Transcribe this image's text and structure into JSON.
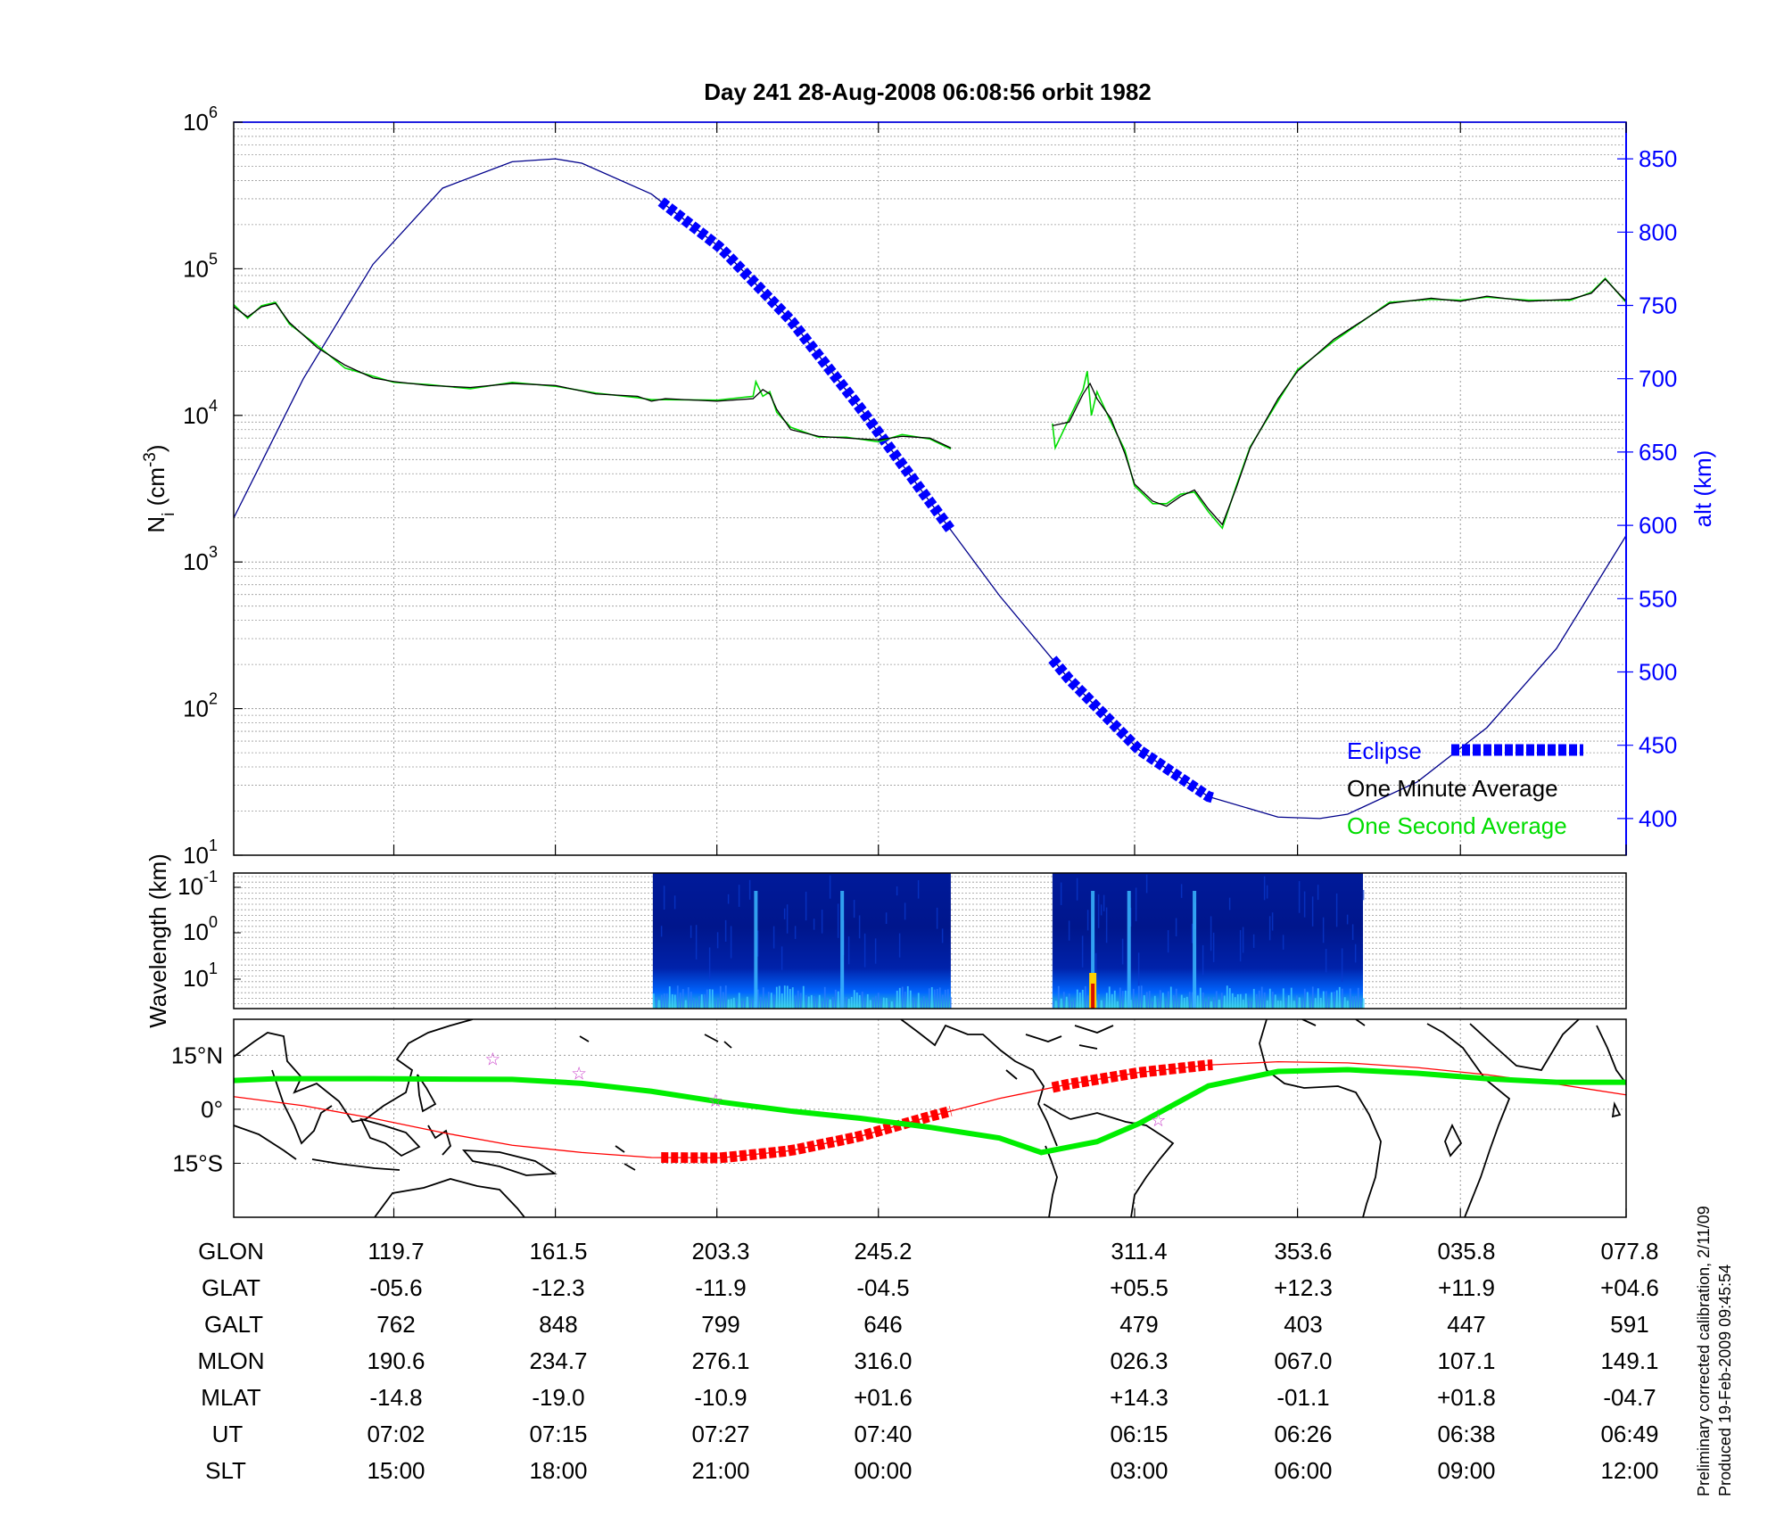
{
  "chart_data": [
    {
      "type": "line",
      "title": "Day 241  28-Aug-2008 06:08:56   orbit 1982",
      "ylabel": "N_i (cm^-3)",
      "yscale": "log",
      "ylim": [
        10,
        1000000
      ],
      "y_ticks": [
        "10^1",
        "10^2",
        "10^3",
        "10^4",
        "10^5",
        "10^6"
      ],
      "y2label": "alt (km)",
      "y2lim": [
        375,
        875
      ],
      "y2_ticks": [
        400,
        450,
        500,
        550,
        600,
        650,
        700,
        750,
        800,
        850
      ],
      "xlim": [
        0,
        1
      ],
      "x_ticks": [
        0.115,
        0.231,
        0.347,
        0.463,
        0.647,
        0.764,
        0.881,
        1.0
      ],
      "grid": true,
      "legend": {
        "position": "bottom-right",
        "entries": [
          "Eclipse",
          "One Minute Average",
          "One Second Average"
        ]
      },
      "series": [
        {
          "name": "One Minute Average",
          "color": "#000000",
          "segments": [
            {
              "x": [
                0.0,
                0.01,
                0.02,
                0.03,
                0.04,
                0.06,
                0.08,
                0.1,
                0.115,
                0.14,
                0.17,
                0.2,
                0.231,
                0.26,
                0.29,
                0.3,
                0.31,
                0.347,
                0.373,
                0.38,
                0.385,
                0.39,
                0.4,
                0.42,
                0.44,
                0.463,
                0.48,
                0.5,
                0.515
              ],
              "y": [
                55000,
                47000,
                55000,
                58000,
                43000,
                29000,
                22000,
                18000,
                17000,
                16000,
                15500,
                16500,
                16000,
                14000,
                13500,
                12500,
                13000,
                12500,
                13000,
                15000,
                14000,
                11000,
                8000,
                7200,
                7000,
                6800,
                7200,
                7000,
                6000
              ]
            },
            {
              "x": [
                0.588,
                0.6,
                0.61,
                0.615,
                0.62,
                0.63,
                0.64,
                0.647,
                0.66,
                0.67,
                0.68,
                0.69,
                0.7,
                0.71,
                0.72,
                0.73,
                0.75,
                0.764,
                0.79,
                0.83,
                0.86,
                0.881,
                0.9,
                0.93,
                0.96,
                0.975,
                0.985,
                1.0
              ],
              "y": [
                8500,
                9000,
                14000,
                16500,
                13000,
                9500,
                5500,
                3400,
                2600,
                2400,
                2800,
                3100,
                2300,
                1800,
                3200,
                6000,
                13000,
                20000,
                33000,
                58000,
                63000,
                60000,
                65000,
                60000,
                62000,
                68000,
                85000,
                60000
              ]
            }
          ]
        },
        {
          "name": "One Second Average",
          "color": "#00dd00",
          "segments": [
            {
              "x": [
                0.0,
                0.01,
                0.02,
                0.03,
                0.04,
                0.06,
                0.08,
                0.1,
                0.115,
                0.14,
                0.17,
                0.2,
                0.231,
                0.26,
                0.29,
                0.3,
                0.31,
                0.347,
                0.373,
                0.375,
                0.38,
                0.385,
                0.39,
                0.4,
                0.42,
                0.44,
                0.463,
                0.48,
                0.5,
                0.515
              ],
              "y": [
                57000,
                46000,
                56000,
                59000,
                42000,
                30000,
                21000,
                18500,
                16800,
                16200,
                15200,
                16800,
                15800,
                14200,
                13200,
                12800,
                12800,
                12700,
                13500,
                17000,
                13500,
                14500,
                10500,
                8300,
                7100,
                7100,
                6600,
                7400,
                6900,
                5900
              ]
            },
            {
              "x": [
                0.588,
                0.59,
                0.6,
                0.61,
                0.613,
                0.616,
                0.62,
                0.63,
                0.64,
                0.647,
                0.66,
                0.67,
                0.68,
                0.69,
                0.7,
                0.71,
                0.72,
                0.73,
                0.75,
                0.764,
                0.79,
                0.83,
                0.86,
                0.881,
                0.9,
                0.93,
                0.96,
                0.975,
                0.985,
                1.0
              ],
              "y": [
                8800,
                6000,
                9500,
                15000,
                20000,
                10000,
                14500,
                9000,
                5800,
                3300,
                2500,
                2500,
                2900,
                3000,
                2200,
                1700,
                3300,
                6100,
                12500,
                20500,
                32000,
                59000,
                62000,
                61000,
                64000,
                61000,
                61000,
                69000,
                86000,
                59000
              ]
            }
          ]
        },
        {
          "name": "alt (km)",
          "axis": "right",
          "color": "#00008b",
          "x": [
            0.0,
            0.05,
            0.1,
            0.15,
            0.2,
            0.231,
            0.25,
            0.3,
            0.35,
            0.4,
            0.45,
            0.5,
            0.55,
            0.6,
            0.65,
            0.7,
            0.75,
            0.78,
            0.8,
            0.85,
            0.9,
            0.95,
            1.0
          ],
          "y": [
            605,
            700,
            778,
            830,
            848,
            850,
            847,
            826,
            789,
            740,
            680,
            616,
            552,
            495,
            447,
            415,
            401,
            400,
            403,
            425,
            462,
            516,
            593
          ]
        },
        {
          "name": "Eclipse",
          "axis": "right",
          "color": "#0000ff",
          "style": "thick-dashed",
          "segments": [
            {
              "x_range": [
                0.307,
                0.515
              ]
            },
            {
              "x_range": [
                0.588,
                0.703
              ]
            }
          ]
        }
      ]
    },
    {
      "type": "heatmap",
      "ylabel": "Wavelength (km)",
      "y_ticks": [
        "10^-1",
        "10^0",
        "10^1"
      ],
      "colormap": "jet",
      "blocks": [
        {
          "x_range": [
            0.301,
            0.515
          ],
          "peaks": [
            0.437,
            0.375
          ]
        },
        {
          "x_range": [
            0.588,
            0.811
          ],
          "peaks": [
            0.617,
            0.643,
            0.69
          ]
        }
      ]
    },
    {
      "type": "map",
      "y_ticks": [
        "15°N",
        "0°",
        "15°S"
      ],
      "series": [
        {
          "name": "Satellite geographic track",
          "color": "#ff0000",
          "x": [
            0.0,
            0.05,
            0.1,
            0.15,
            0.2,
            0.25,
            0.3,
            0.35,
            0.4,
            0.45,
            0.5,
            0.55,
            0.6,
            0.65,
            0.7,
            0.75,
            0.8,
            0.85,
            0.9,
            0.95,
            1.0
          ],
          "y": [
            3.5,
            1.0,
            -2.5,
            -6.5,
            -10.0,
            -12.0,
            -13.4,
            -13.5,
            -11.5,
            -7.5,
            -2.0,
            3.0,
            7.0,
            10.2,
            12.3,
            13.2,
            12.9,
            11.6,
            9.6,
            7.0,
            4.0
          ]
        },
        {
          "name": "Magnetic equator",
          "color": "#00ee00",
          "x": [
            0.0,
            0.03,
            0.1,
            0.2,
            0.25,
            0.3,
            0.35,
            0.4,
            0.45,
            0.5,
            0.55,
            0.58,
            0.62,
            0.65,
            0.7,
            0.75,
            0.8,
            0.85,
            0.9,
            0.95,
            1.0
          ],
          "y": [
            8.0,
            8.5,
            8.5,
            8.3,
            7.2,
            5.0,
            2.0,
            -0.5,
            -2.5,
            -5.0,
            -8.0,
            -12.0,
            -9.0,
            -4.0,
            6.5,
            10.5,
            11.0,
            10.0,
            8.5,
            7.5,
            7.5
          ]
        }
      ],
      "eclipse_segments": [
        {
          "x_range": [
            0.307,
            0.515
          ]
        },
        {
          "x_range": [
            0.588,
            0.703
          ]
        }
      ],
      "stars": [
        {
          "x": 0.186,
          "y": 14.0
        },
        {
          "x": 0.248,
          "y": 10.0
        },
        {
          "x": 0.346,
          "y": 2.5
        },
        {
          "x": 0.664,
          "y": -3.0
        }
      ]
    }
  ],
  "table": {
    "row_labels": [
      "GLON",
      "GLAT",
      "GALT",
      "MLON",
      "MLAT",
      "UT",
      "SLT"
    ],
    "columns": [
      [
        "119.7",
        "-05.6",
        "762",
        "190.6",
        "-14.8",
        "07:02",
        "15:00"
      ],
      [
        "161.5",
        "-12.3",
        "848",
        "234.7",
        "-19.0",
        "07:15",
        "18:00"
      ],
      [
        "203.3",
        "-11.9",
        "799",
        "276.1",
        "-10.9",
        "07:27",
        "21:00"
      ],
      [
        "245.2",
        "-04.5",
        "646",
        "316.0",
        "+01.6",
        "07:40",
        "00:00"
      ],
      [
        "311.4",
        "+05.5",
        "479",
        "026.3",
        "+14.3",
        "06:15",
        "03:00"
      ],
      [
        "353.6",
        "+12.3",
        "403",
        "067.0",
        "-01.1",
        "06:26",
        "06:00"
      ],
      [
        "035.8",
        "+11.9",
        "447",
        "107.1",
        "+01.8",
        "06:38",
        "09:00"
      ],
      [
        "077.8",
        "+04.6",
        "591",
        "149.1",
        "-04.7",
        "06:49",
        "12:00"
      ]
    ]
  },
  "side_note": {
    "line1": "Preliminary corrected calibration, 2/11/09",
    "line2": "Produced 19-Feb-2009 09:45:54"
  },
  "colors": {
    "axis_blue": "#0000ff",
    "altitude_line": "#00008b",
    "eclipse": "#0000ff",
    "map_eclipse": "#ff0000",
    "one_minute": "#000000",
    "one_second": "#00dd00",
    "stars": "#cc44cc"
  }
}
